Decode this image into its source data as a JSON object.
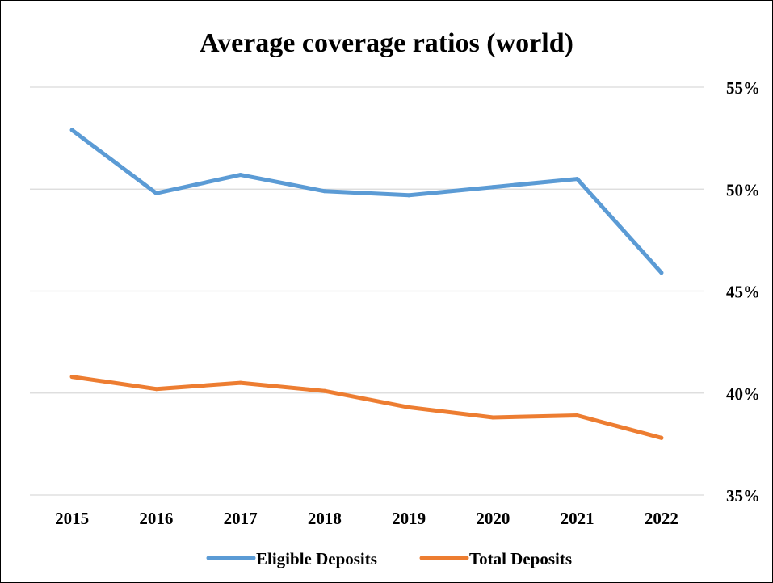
{
  "chart_data": {
    "type": "line",
    "title": "Average coverage ratios (world)",
    "xlabel": "",
    "ylabel": "",
    "categories": [
      "2015",
      "2016",
      "2017",
      "2018",
      "2019",
      "2020",
      "2021",
      "2022"
    ],
    "y_axis": {
      "position": "right",
      "ylim": [
        0.35,
        0.55
      ],
      "ticks": [
        0.55,
        0.5,
        0.45,
        0.4,
        0.35
      ],
      "tick_labels": [
        "55%",
        "50%",
        "45%",
        "40%",
        "35%"
      ]
    },
    "grid": true,
    "legend_position": "bottom",
    "series": [
      {
        "name": "Eligible Deposits",
        "color": "#5b9bd5",
        "values": [
          0.529,
          0.498,
          0.507,
          0.499,
          0.497,
          0.501,
          0.505,
          0.459
        ]
      },
      {
        "name": "Total Deposits",
        "color": "#ed7d31",
        "values": [
          0.408,
          0.402,
          0.405,
          0.401,
          0.393,
          0.388,
          0.389,
          0.378
        ]
      }
    ]
  }
}
